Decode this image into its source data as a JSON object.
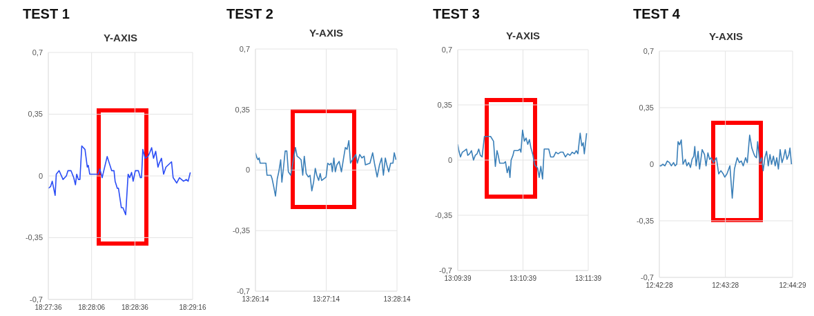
{
  "chart_data": [
    {
      "type": "line",
      "title": "TEST 1",
      "subtitle": "Y-AXIS",
      "color": "#2a4cf5",
      "marker": "none",
      "grid": true,
      "x": [
        18.46,
        18.46044,
        18.46075,
        18.46131,
        18.46153,
        18.46208,
        18.46283,
        18.46347,
        18.46378,
        18.46436,
        18.46489,
        18.46522,
        18.46547,
        18.46578,
        18.46608,
        18.46644,
        18.46706,
        18.4675,
        18.46769,
        18.46797,
        18.4685,
        18.46892,
        18.46958,
        18.46992,
        18.47036,
        18.47133,
        18.47219,
        18.47264,
        18.47286,
        18.47328,
        18.4735,
        18.47406,
        18.47436,
        18.47489,
        18.47536,
        18.47567,
        18.47603,
        18.47633,
        18.47675,
        18.47733,
        18.47772,
        18.47794,
        18.47819,
        18.47864,
        18.47917,
        18.4795,
        18.47989,
        18.48025,
        18.48067,
        18.48111,
        18.48133,
        18.48178,
        18.48219,
        18.48264,
        18.48372,
        18.48403,
        18.48472,
        18.48525,
        18.48603,
        18.48656,
        18.48692,
        18.48733
      ],
      "values": [
        -0.07,
        -0.06,
        -0.03,
        -0.11,
        0.01,
        0.03,
        -0.02,
        0.0,
        0.03,
        0.03,
        -0.01,
        -0.05,
        0.01,
        -0.02,
        -0.02,
        0.17,
        0.15,
        0.05,
        0.06,
        0.01,
        0.01,
        0.01,
        0.01,
        0.04,
        -0.01,
        0.11,
        0.03,
        0.03,
        -0.03,
        -0.07,
        -0.07,
        -0.18,
        -0.18,
        -0.22,
        0.01,
        -0.01,
        0.02,
        -0.03,
        0.03,
        0.03,
        -0.01,
        -0.01,
        0.15,
        0.1,
        0.11,
        0.13,
        0.16,
        0.1,
        0.14,
        0.05,
        0.07,
        0.1,
        0.01,
        0.05,
        0.08,
        -0.01,
        -0.04,
        -0.01,
        -0.03,
        -0.02,
        -0.03,
        0.02
      ],
      "xlim": [
        18.46,
        18.48778
      ],
      "xticks": [
        {
          "value": 18.46,
          "label": "18:27:36"
        },
        {
          "value": 18.46833,
          "label": "18:28:06"
        },
        {
          "value": 18.47667,
          "label": "18:28:36"
        },
        {
          "value": 18.48778,
          "label": "18:29:16"
        }
      ],
      "ylim": [
        -0.7,
        0.7
      ],
      "yticks": [
        {
          "value": -0.7,
          "label": "-0,7"
        },
        {
          "value": -0.35,
          "label": "-0,35"
        },
        {
          "value": 0,
          "label": "0"
        },
        {
          "value": 0.35,
          "label": "0,35"
        },
        {
          "value": 0.7,
          "label": "0,7"
        }
      ]
    },
    {
      "type": "line",
      "title": "TEST 2",
      "subtitle": "Y-AXIS",
      "color": "#3a7fb8",
      "marker": "none",
      "grid": true,
      "x": [
        13.43722,
        13.43758,
        13.43781,
        13.43808,
        13.43833,
        13.43861,
        13.439,
        13.43969,
        13.43994,
        13.4405,
        13.44086,
        13.44114,
        13.44156,
        13.44194,
        13.44236,
        13.44272,
        13.44317,
        13.44344,
        13.44381,
        13.44422,
        13.44461,
        13.44497,
        13.44553,
        13.44664,
        13.44703,
        13.44756,
        13.44797,
        13.44836,
        13.44872,
        13.44917,
        13.44969,
        13.45008,
        13.4505,
        13.45092,
        13.45131,
        13.45167,
        13.45211,
        13.45247,
        13.45281,
        13.45333,
        13.45386,
        13.45425,
        13.45467,
        13.45506,
        13.45533,
        13.45569,
        13.45603,
        13.45639,
        13.45694,
        13.45747,
        13.45792,
        13.45839,
        13.45881,
        13.45922,
        13.45961,
        13.46031,
        13.46086,
        13.46122,
        13.46178,
        13.46231,
        13.46283,
        13.46311,
        13.46419,
        13.46483,
        13.46525,
        13.46589,
        13.46644,
        13.46694,
        13.46736,
        13.46781,
        13.46817,
        13.46861,
        13.46906,
        13.46961,
        13.46992,
        13.47031
      ],
      "values": [
        0.1,
        0.07,
        0.06,
        0.07,
        0.04,
        0.04,
        0.04,
        0.04,
        -0.03,
        -0.03,
        -0.03,
        -0.05,
        -0.1,
        -0.15,
        -0.05,
        -0.01,
        0.06,
        -0.07,
        0.01,
        0.11,
        0.11,
        -0.01,
        -0.03,
        0.13,
        0.08,
        0.07,
        0.06,
        -0.03,
        0.08,
        -0.02,
        -0.04,
        -0.03,
        -0.12,
        -0.07,
        0.01,
        -0.03,
        -0.06,
        -0.02,
        -0.06,
        -0.05,
        -0.04,
        0.04,
        0.03,
        0.04,
        -0.01,
        0.07,
        -0.01,
        0.03,
        0.05,
        -0.01,
        0.06,
        0.13,
        0.12,
        0.17,
        0.04,
        0.07,
        0.09,
        0.04,
        0.09,
        0.07,
        0.08,
        0.03,
        0.04,
        0.1,
        0.04,
        -0.04,
        0.03,
        0.07,
        -0.03,
        0.07,
        0.03,
        -0.01,
        0.04,
        0.04,
        0.1,
        0.06
      ],
      "xlim": [
        13.43722,
        13.47056
      ],
      "xticks": [
        {
          "value": 13.43722,
          "label": "13:26:14"
        },
        {
          "value": 13.45389,
          "label": "13:27:14"
        },
        {
          "value": 13.47056,
          "label": "13:28:14"
        }
      ],
      "ylim": [
        -0.7,
        0.7
      ],
      "yticks": [
        {
          "value": -0.7,
          "label": "-0,7"
        },
        {
          "value": -0.35,
          "label": "-0,35"
        },
        {
          "value": 0,
          "label": "0"
        },
        {
          "value": 0.35,
          "label": "0,35"
        },
        {
          "value": 0.7,
          "label": "0,7"
        }
      ]
    },
    {
      "type": "line",
      "title": "TEST 3",
      "subtitle": "Y-AXIS",
      "color": "#3a7fb8",
      "marker": "none",
      "grid": true,
      "x": [
        13.16083,
        13.16111,
        13.16153,
        13.162,
        13.16258,
        13.16306,
        13.16339,
        13.16386,
        13.16433,
        13.16486,
        13.16531,
        13.16578,
        13.16619,
        13.16661,
        13.16706,
        13.16764,
        13.16822,
        13.16922,
        13.16997,
        13.17044,
        13.17086,
        13.17117,
        13.17156,
        13.17203,
        13.17261,
        13.17303,
        13.17347,
        13.17389,
        13.17417,
        13.17447,
        13.17494,
        13.17522,
        13.17622,
        13.17669,
        13.17697,
        13.17739,
        13.17786,
        13.17828,
        13.17872,
        13.17914,
        13.1795,
        13.18006,
        13.18047,
        13.18122,
        13.18164,
        13.18206,
        13.1825,
        13.18292,
        13.18339,
        13.18408,
        13.18456,
        13.18531,
        13.18589,
        13.18647,
        13.18706,
        13.18775,
        13.18833,
        13.18892,
        13.1895,
        13.19008,
        13.19064,
        13.19111,
        13.19153,
        13.19211,
        13.19253,
        13.19289,
        13.19317,
        13.19375
      ],
      "values": [
        0.1,
        0.06,
        0.02,
        0.05,
        0.06,
        0.07,
        0.03,
        0.04,
        0.06,
        0.0,
        0.03,
        0.04,
        0.07,
        0.03,
        0.02,
        0.15,
        0.15,
        0.15,
        0.12,
        -0.04,
        0.06,
        0.03,
        -0.02,
        -0.02,
        -0.02,
        -0.01,
        -0.08,
        -0.04,
        -0.11,
        0.0,
        0.03,
        0.06,
        0.06,
        0.07,
        0.05,
        0.19,
        0.12,
        0.14,
        0.1,
        0.13,
        0.08,
        0.03,
        -0.03,
        -0.05,
        -0.11,
        -0.04,
        -0.12,
        0.07,
        0.07,
        0.07,
        0.02,
        0.02,
        0.05,
        0.04,
        0.05,
        0.05,
        0.02,
        0.04,
        0.03,
        0.05,
        0.04,
        0.06,
        0.04,
        0.17,
        0.09,
        0.11,
        0.04,
        0.17
      ],
      "xlim": [
        13.16083,
        13.19417
      ],
      "xticks": [
        {
          "value": 13.16083,
          "label": "13:09:39"
        },
        {
          "value": 13.1775,
          "label": "13:10:39"
        },
        {
          "value": 13.19417,
          "label": "13:11:39"
        }
      ],
      "ylim": [
        -0.7,
        0.7
      ],
      "yticks": [
        {
          "value": -0.7,
          "label": "-0,7"
        },
        {
          "value": -0.35,
          "label": "-0,35"
        },
        {
          "value": 0,
          "label": "0"
        },
        {
          "value": 0.35,
          "label": "0,35"
        },
        {
          "value": 0.7,
          "label": "0,7"
        }
      ]
    },
    {
      "type": "line",
      "title": "TEST 4",
      "subtitle": "Y-AXIS",
      "color": "#3a7fb8",
      "marker": "none",
      "grid": true,
      "x": [
        12.70778,
        12.70817,
        12.70864,
        12.70919,
        12.70978,
        12.71033,
        12.71081,
        12.71136,
        12.71175,
        12.71217,
        12.7125,
        12.71289,
        12.71331,
        12.71375,
        12.71433,
        12.71472,
        12.71517,
        12.71564,
        12.71603,
        12.71647,
        12.71672,
        12.71706,
        12.71756,
        12.71792,
        12.71858,
        12.71917,
        12.71956,
        12.72003,
        12.72047,
        12.72086,
        12.72144,
        12.72217,
        12.72275,
        12.72331,
        12.72389,
        12.72428,
        12.72483,
        12.72558,
        12.72617,
        12.72672,
        12.72742,
        12.72797,
        12.72844,
        12.72894,
        12.72953,
        12.72997,
        12.73056,
        12.73111,
        12.73153,
        12.73186,
        12.73228,
        12.73256,
        12.73311,
        12.73358,
        12.73397,
        12.73439,
        12.73483,
        12.73525,
        12.73569,
        12.73608,
        12.73656,
        12.737,
        12.73739,
        12.73781,
        12.73825,
        12.73872,
        12.73911,
        12.73953,
        12.73997,
        12.74044,
        12.74072,
        12.74111
      ],
      "values": [
        -0.01,
        -0.01,
        0.0,
        -0.01,
        0.02,
        0.01,
        -0.01,
        0.01,
        -0.01,
        0.0,
        0.14,
        0.12,
        0.15,
        0.0,
        0.03,
        -0.01,
        0.01,
        -0.02,
        0.03,
        0.05,
        0.11,
        -0.01,
        0.08,
        -0.03,
        0.09,
        0.06,
        -0.01,
        0.07,
        0.03,
        0.04,
        0.01,
        0.04,
        -0.06,
        -0.04,
        -0.06,
        -0.08,
        -0.06,
        -0.01,
        -0.21,
        -0.03,
        0.04,
        0.01,
        0.02,
        -0.01,
        0.04,
        0.01,
        0.18,
        0.1,
        0.07,
        0.05,
        0.04,
        0.14,
        0.01,
        0.04,
        -0.04,
        0.04,
        0.08,
        -0.01,
        0.06,
        0.0,
        0.05,
        -0.01,
        0.04,
        -0.03,
        0.09,
        0.01,
        0.04,
        0.09,
        0.03,
        0.06,
        0.1,
        0.0
      ],
      "xlim": [
        12.70778,
        12.74139
      ],
      "xticks": [
        {
          "value": 12.70778,
          "label": "12:42:28"
        },
        {
          "value": 12.72444,
          "label": "12:43:28"
        },
        {
          "value": 12.74139,
          "label": "12:44:29"
        }
      ],
      "ylim": [
        -0.7,
        0.7
      ],
      "yticks": [
        {
          "value": -0.7,
          "label": "-0,7"
        },
        {
          "value": -0.35,
          "label": "-0,35"
        },
        {
          "value": 0,
          "label": "0"
        },
        {
          "value": 0.35,
          "label": "0,35"
        },
        {
          "value": 0.7,
          "label": "0,7"
        }
      ]
    }
  ]
}
